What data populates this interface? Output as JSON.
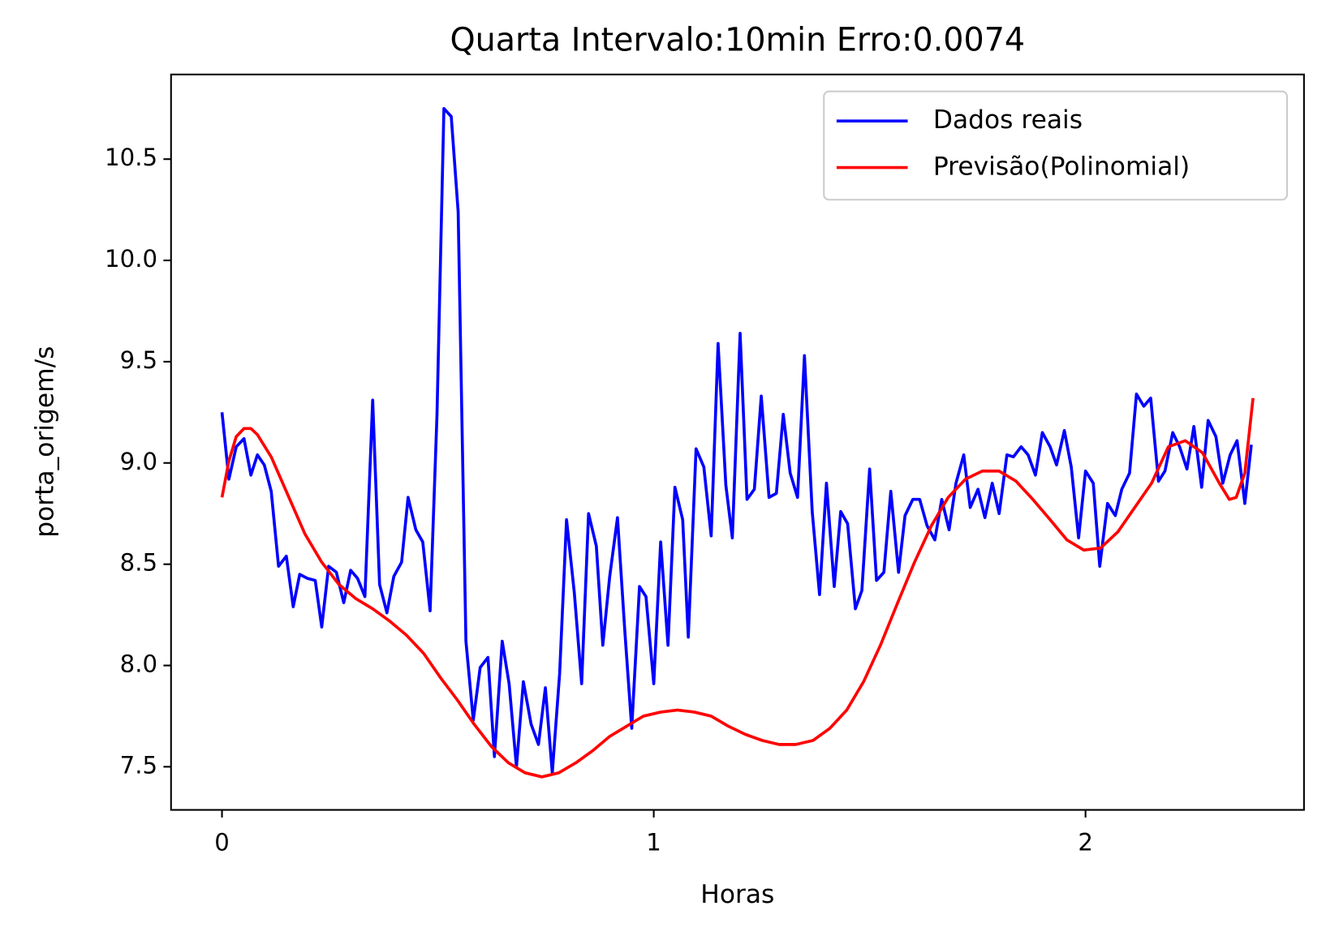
{
  "chart_data": {
    "type": "line",
    "title": "Quarta Intervalo:10min Erro:0.0074",
    "xlabel": "Horas",
    "ylabel": "porta_origem/s",
    "xlim": [
      -0.118,
      2.506
    ],
    "ylim": [
      7.287,
      10.918
    ],
    "xticks": [
      0,
      1,
      2
    ],
    "yticks": [
      7.5,
      {
        "value": 8,
        "label": "8.0"
      },
      8.5,
      {
        "value": 9,
        "label": "9.0"
      },
      9.5,
      {
        "value": 10,
        "label": "10.0"
      },
      10.5
    ],
    "grid": false,
    "legend": "upper right",
    "series": [
      {
        "name": "Dados reais",
        "color": "#0000ff",
        "x": [
          0,
          0.016,
          0.033,
          0.051,
          0.067,
          0.082,
          0.098,
          0.114,
          0.131,
          0.149,
          0.165,
          0.18,
          0.198,
          0.216,
          0.231,
          0.247,
          0.265,
          0.282,
          0.298,
          0.314,
          0.331,
          0.349,
          0.365,
          0.382,
          0.398,
          0.416,
          0.431,
          0.449,
          0.465,
          0.482,
          0.498,
          0.514,
          0.531,
          0.547,
          0.565,
          0.582,
          0.598,
          0.616,
          0.631,
          0.649,
          0.665,
          0.682,
          0.698,
          0.716,
          0.733,
          0.749,
          0.765,
          0.782,
          0.798,
          0.816,
          0.833,
          0.849,
          0.867,
          0.882,
          0.898,
          0.916,
          0.933,
          0.949,
          0.967,
          0.982,
          1.0,
          1.016,
          1.033,
          1.049,
          1.067,
          1.08,
          1.098,
          1.116,
          1.133,
          1.149,
          1.167,
          1.182,
          1.2,
          1.216,
          1.233,
          1.249,
          1.267,
          1.284,
          1.3,
          1.316,
          1.333,
          1.349,
          1.367,
          1.384,
          1.4,
          1.418,
          1.433,
          1.449,
          1.467,
          1.482,
          1.5,
          1.516,
          1.533,
          1.549,
          1.567,
          1.582,
          1.6,
          1.616,
          1.633,
          1.651,
          1.667,
          1.684,
          1.7,
          1.718,
          1.733,
          1.751,
          1.767,
          1.784,
          1.8,
          1.818,
          1.833,
          1.851,
          1.867,
          1.884,
          1.9,
          1.918,
          1.933,
          1.951,
          1.967,
          1.984,
          2.0,
          2.018,
          2.033,
          2.051,
          2.069,
          2.084,
          2.102,
          2.118,
          2.135,
          2.151,
          2.169,
          2.184,
          2.202,
          2.218,
          2.235,
          2.251,
          2.269,
          2.284,
          2.302,
          2.318,
          2.335,
          2.351,
          2.369,
          2.384
        ],
        "values": [
          9.25,
          8.92,
          9.08,
          9.12,
          8.94,
          9.04,
          8.99,
          8.86,
          8.49,
          8.54,
          8.29,
          8.45,
          8.43,
          8.42,
          8.19,
          8.49,
          8.46,
          8.31,
          8.47,
          8.43,
          8.34,
          9.31,
          8.4,
          8.26,
          8.44,
          8.51,
          8.83,
          8.67,
          8.61,
          8.27,
          9.24,
          10.75,
          10.71,
          10.24,
          8.12,
          7.73,
          7.99,
          8.04,
          7.55,
          8.12,
          7.91,
          7.5,
          7.92,
          7.71,
          7.61,
          7.89,
          7.47,
          7.96,
          8.72,
          8.36,
          7.91,
          8.75,
          8.59,
          8.1,
          8.44,
          8.73,
          8.17,
          7.69,
          8.39,
          8.34,
          7.91,
          8.61,
          8.1,
          8.88,
          8.72,
          8.14,
          9.07,
          8.98,
          8.64,
          9.59,
          8.89,
          8.63,
          9.64,
          8.82,
          8.87,
          9.33,
          8.83,
          8.85,
          9.24,
          8.95,
          8.83,
          9.53,
          8.76,
          8.35,
          8.9,
          8.39,
          8.76,
          8.7,
          8.28,
          8.37,
          8.97,
          8.42,
          8.46,
          8.86,
          8.46,
          8.74,
          8.82,
          8.82,
          8.69,
          8.62,
          8.82,
          8.67,
          8.9,
          9.04,
          8.78,
          8.87,
          8.73,
          8.9,
          8.75,
          9.04,
          9.03,
          9.08,
          9.04,
          8.94,
          9.15,
          9.08,
          8.99,
          9.16,
          8.98,
          8.63,
          8.96,
          8.9,
          8.49,
          8.8,
          8.74,
          8.87,
          8.95,
          9.34,
          9.28,
          9.32,
          8.91,
          8.96,
          9.15,
          9.08,
          8.97,
          9.18,
          8.88,
          9.21,
          9.13,
          8.9,
          9.04,
          9.11,
          8.8,
          9.09
        ]
      },
      {
        "name": "Previsão(Polinomial)",
        "color": "#ff0000",
        "x": [
          0,
          0.016,
          0.033,
          0.051,
          0.067,
          0.082,
          0.114,
          0.153,
          0.192,
          0.231,
          0.271,
          0.31,
          0.349,
          0.388,
          0.427,
          0.467,
          0.506,
          0.545,
          0.584,
          0.624,
          0.663,
          0.702,
          0.741,
          0.78,
          0.82,
          0.859,
          0.898,
          0.937,
          0.976,
          1.016,
          1.055,
          1.094,
          1.133,
          1.173,
          1.212,
          1.251,
          1.29,
          1.329,
          1.369,
          1.408,
          1.447,
          1.486,
          1.525,
          1.565,
          1.604,
          1.643,
          1.682,
          1.722,
          1.761,
          1.8,
          1.839,
          1.878,
          1.918,
          1.957,
          1.996,
          2.035,
          2.075,
          2.114,
          2.153,
          2.192,
          2.231,
          2.271,
          2.31,
          2.333,
          2.349,
          2.369,
          2.388
        ],
        "values": [
          8.83,
          9.01,
          9.13,
          9.17,
          9.17,
          9.14,
          9.03,
          8.84,
          8.65,
          8.51,
          8.4,
          8.33,
          8.28,
          8.22,
          8.15,
          8.06,
          7.94,
          7.83,
          7.71,
          7.6,
          7.52,
          7.47,
          7.45,
          7.47,
          7.52,
          7.58,
          7.65,
          7.7,
          7.75,
          7.77,
          7.78,
          7.77,
          7.75,
          7.7,
          7.66,
          7.63,
          7.61,
          7.61,
          7.63,
          7.69,
          7.78,
          7.92,
          8.1,
          8.31,
          8.51,
          8.69,
          8.83,
          8.92,
          8.96,
          8.96,
          8.91,
          8.82,
          8.72,
          8.62,
          8.57,
          8.58,
          8.66,
          8.78,
          8.9,
          9.08,
          9.11,
          9.05,
          8.9,
          8.82,
          8.83,
          8.95,
          9.32
        ]
      }
    ]
  }
}
